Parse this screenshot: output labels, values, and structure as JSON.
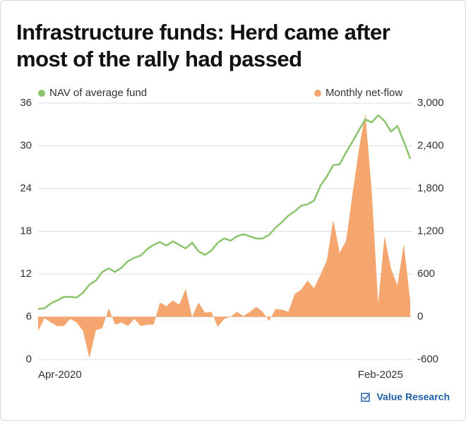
{
  "chart_data": {
    "type": "dual-axis",
    "title": "Infrastructure funds: Herd came after most of the rally had passed",
    "source": "Value Research",
    "categories": [
      "Apr-2020",
      null,
      null,
      null,
      null,
      null,
      null,
      null,
      null,
      null,
      null,
      null,
      null,
      null,
      null,
      null,
      null,
      null,
      null,
      null,
      null,
      null,
      null,
      null,
      null,
      null,
      null,
      null,
      null,
      null,
      null,
      null,
      null,
      null,
      null,
      null,
      null,
      null,
      null,
      null,
      null,
      null,
      null,
      null,
      null,
      null,
      null,
      null,
      null,
      null,
      null,
      null,
      null,
      null,
      null,
      null,
      null,
      null,
      "Feb-2025"
    ],
    "series": [
      {
        "name": "NAV of average fund",
        "type": "line",
        "axis": "y",
        "color": "#8cc46c",
        "values": [
          7.1,
          7.2,
          7.9,
          8.3,
          8.8,
          8.8,
          8.7,
          9.4,
          10.5,
          11.1,
          12.3,
          12.8,
          12.3,
          12.9,
          13.8,
          14.3,
          14.6,
          15.5,
          16.1,
          16.5,
          16.0,
          16.6,
          16.1,
          15.6,
          16.4,
          15.2,
          14.7,
          15.3,
          16.4,
          17.0,
          16.7,
          17.3,
          17.6,
          17.3,
          17.0,
          17.0,
          17.5,
          18.5,
          19.3,
          20.2,
          20.8,
          21.6,
          21.8,
          22.3,
          24.4,
          25.7,
          27.3,
          27.4,
          29.1,
          30.6,
          32.2,
          33.7,
          33.3,
          34.3,
          33.5,
          32.0,
          32.8,
          30.6,
          28.2
        ]
      },
      {
        "name": "Monthly net-flow",
        "type": "area",
        "axis": "y2",
        "color": "#f5a66e",
        "values": [
          -200,
          -20,
          -80,
          -130,
          -130,
          -30,
          -80,
          -200,
          -580,
          -190,
          -160,
          120,
          -110,
          -80,
          -130,
          -30,
          -130,
          -110,
          -110,
          200,
          150,
          230,
          170,
          390,
          0,
          200,
          60,
          70,
          -140,
          -30,
          0,
          70,
          10,
          70,
          140,
          70,
          -60,
          110,
          100,
          70,
          320,
          380,
          510,
          400,
          590,
          790,
          1360,
          900,
          1070,
          1720,
          2350,
          2850,
          1760,
          190,
          1130,
          680,
          440,
          1020,
          230
        ]
      }
    ],
    "ylim": [
      0,
      36
    ],
    "yticks": [
      0,
      6,
      12,
      18,
      24,
      30,
      36
    ],
    "y2lim": [
      -600,
      3000
    ],
    "y2ticks": [
      -600,
      0,
      600,
      {
        "value": 1200,
        "label": "1,200"
      },
      {
        "value": 1800,
        "label": "1,800"
      },
      {
        "value": 2400,
        "label": "2,400"
      },
      {
        "value": 3000,
        "label": "3,000"
      }
    ],
    "grid": true
  }
}
